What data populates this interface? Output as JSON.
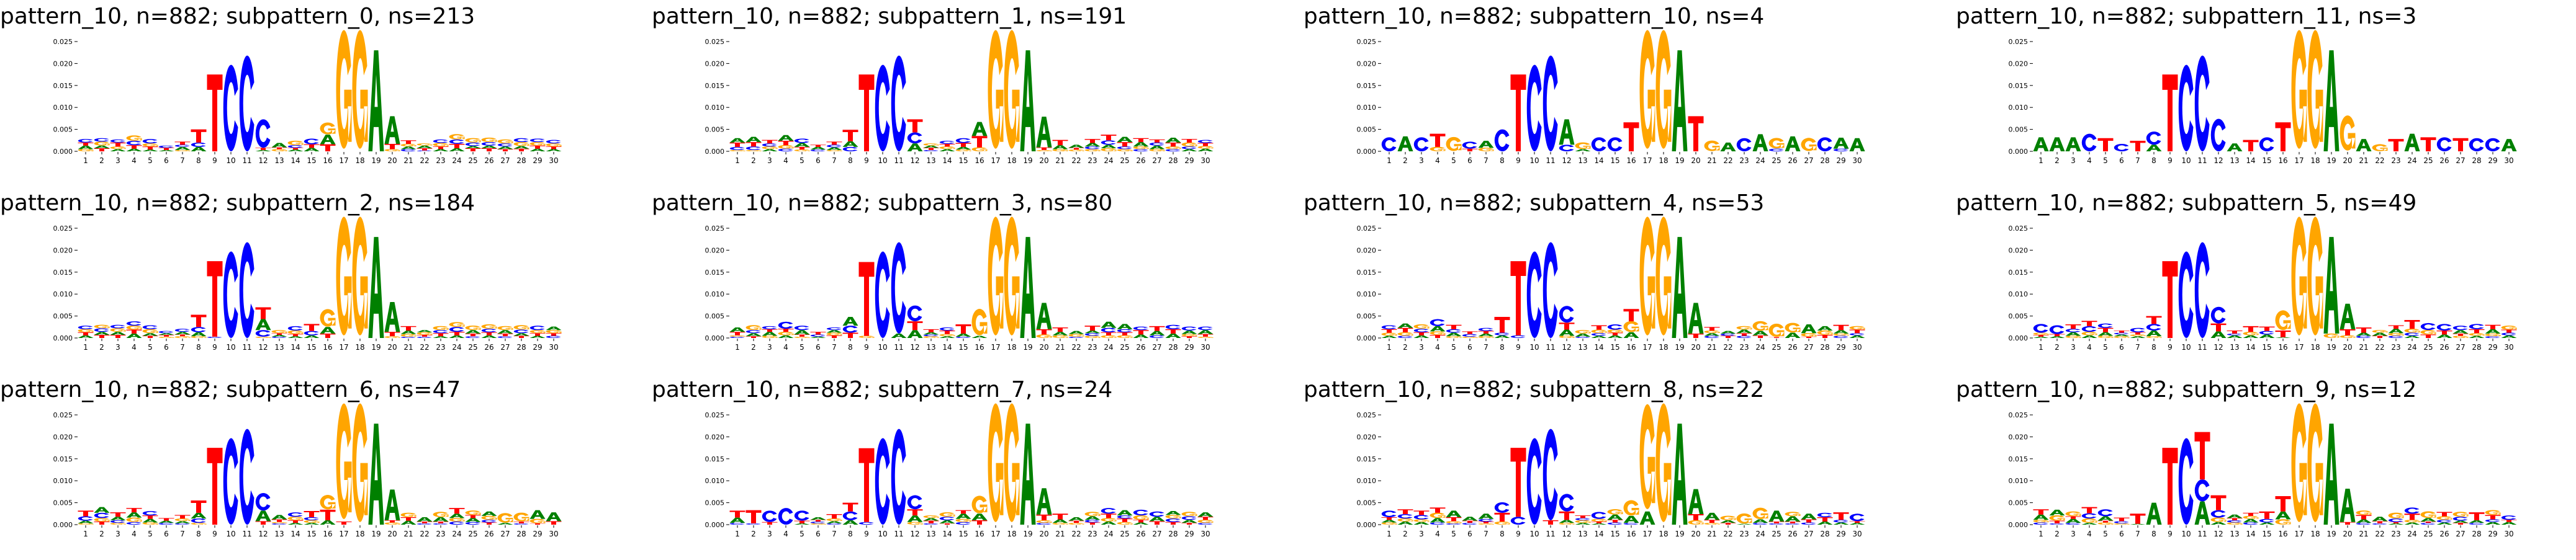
{
  "chart_data": {
    "type": "sequence-logo",
    "ylim": [
      0,
      0.027
    ],
    "yticks": [
      0,
      0.005,
      0.01,
      0.015,
      0.02,
      0.025
    ],
    "ytick_labels": [
      "0.000",
      "0.005",
      "0.010",
      "0.015",
      "0.020",
      "0.025"
    ],
    "xticks": [
      "1",
      "2",
      "3",
      "4",
      "5",
      "6",
      "7",
      "8",
      "9",
      "10",
      "11",
      "12",
      "13",
      "14",
      "15",
      "16",
      "17",
      "18",
      "19",
      "20",
      "21",
      "22",
      "23",
      "24",
      "25",
      "26",
      "27",
      "28",
      "29",
      "30"
    ],
    "value_unit": "0.001",
    "letter_colors": {
      "A": "#008000",
      "C": "#0000ff",
      "G": "#ffa500",
      "T": "#ff0000"
    },
    "core": {
      "9": "T17.5",
      "10": "C19.7",
      "11": "C21.8",
      "17": "G27",
      "18": "G27",
      "19": "A23"
    },
    "panels": [
      {
        "title": "pattern_10, n=882; subpattern_0, ns=213",
        "columns": [
          "G.5 A.8 T.7 C.8",
          "T.7 A.6 G.9 C.8",
          "A.5 G.6 T.9 C.7",
          "A.6 T.8 C1 G1.2",
          "A.4 T.7 G.7 C1",
          "A.3 T.5 C.5",
          "G.3 A.7 C.5 T.7",
          "A1 C1 T3",
          "*",
          "*",
          "*",
          "A.3 T.5 C6.5",
          "G.5 T.4 A1",
          "A.4 T.4 C.6 G1",
          "A.8 T.8 C1.3",
          "T1.6 A2.2 G2.7",
          "*",
          "*",
          "*",
          "G.5 T1.2 A6.3",
          "C.5 A.6 G.6 T.8",
          "C.2 T.5 A.6 G.5",
          "A.5 T.6 G.8 C.8",
          "A.7 T1 C1 G1.2",
          "T.7 A.5 C.8 G1",
          "T.7 A.6 C.8 G1",
          "T.5 A.6 C.7 G.9",
          "T.6 A.6 G.9 C.9",
          "A.6 T.7 G.8 C.8",
          "A.5 T.6 G.7 C.8"
        ]
      },
      {
        "title": "pattern_10, n=882; subpattern_1, ns=191",
        "columns": [
          "G.3 C.7 T1 A1",
          "G.3 C.8 T1 A1.2",
          "A.5 G.6 C.7 T.8",
          "C.6 G.8 T1 A1.3",
          "G.4 T.6 A.9 C1",
          "C.4 A.6 T.5",
          "G.3 A.6 C.6 T.7",
          "C1 A1.3 T2.6",
          "*",
          "*",
          "*",
          "A1.8 C2.5 T3",
          "C.3 T.5 A.5 G.5",
          "A.5 G.6 T.6 C.7",
          "G.4 A.6 T.9 C1.1",
          "G.9 T2.6 A3.2",
          "*",
          "*",
          "*",
          "G.3 T.6 A7",
          "G.5 A.9 T1.2",
          "G.4 T.4 A.7",
          "G.5 C.6 A.8 T.9",
          "G.7 A.8 C1 T1.3",
          "G.5 C.6 T1 A1.2",
          "C.5 G.6 A1 T.9",
          "G.5 A.8 C.7 T.7",
          "C.5 G.6 T.9 A1.1",
          "A.5 C.6 G.9 T.8",
          "A.6 G.6 T.7 C.7"
        ]
      },
      {
        "title": "pattern_10, n=882; subpattern_10, ns=4",
        "columns": [
          "C3.2",
          "A3.4",
          "C3.2",
          "G1 T3",
          "G3.2",
          "T.6 C1.6",
          "G.8 A1.6",
          "C5",
          "*",
          "*",
          "*",
          "C1.5 A5.8",
          "A.5 G1.5",
          "C3.2",
          "C3.2",
          "T6.6",
          "*",
          "*",
          "*",
          "T8",
          "G2.4",
          "A2",
          "C3",
          "A3.9",
          "C.6 G2.4",
          "A3.4",
          "G3",
          "C3.2",
          "C.6 A2.5",
          "A3"
        ]
      },
      {
        "title": "pattern_10, n=882; subpattern_11, ns=3",
        "columns": [
          "A3.2",
          "A3.2",
          "A3.2",
          "C4",
          "T3",
          "C1.7",
          "T2.4",
          "A1.5 C3",
          "*",
          "*",
          "*",
          "C7.4",
          "A1.8",
          "T2.6",
          "C3.2",
          "T6.6",
          "*",
          "*",
          "*",
          "G8",
          "A2.8",
          "G1.6",
          "T2.8",
          "A4",
          "T3.2",
          "C3.2",
          "T3",
          "C3",
          "C3",
          "A2.8"
        ]
      },
      {
        "title": "pattern_10, n=882; subpattern_2, ns=184",
        "columns": [
          "A.6 T.7 G.7 C.8",
          "T.7 A.7 C.8 G.8",
          "T.7 A.7 G.8 C.8",
          "A1 T.9 G.9 C1",
          "T.5 A.6 G.9 C.9",
          "G.3 T.4 A.4 C.5",
          "G.4 T.4 A.6 C.7",
          "G.4 A.9 C1.2 T2.8",
          "C.3 T17.2",
          "*",
          "*",
          "G.3 C1.5 A2.5 T2.7",
          "C.3 A.4 T.4 G.7",
          "A.4 T.5 G.8 C1",
          "A.6 C1 T1.6",
          "T1 A1.5 G4",
          "*",
          "*",
          "*",
          "G.4 T1 A6.8",
          "C.3 G.6 A.8 T1",
          "C.3 T.4 G.6 A.5",
          "A.4 T.7 C.7 G.9",
          "A.6 T.8 C1.1 G1.1",
          "C.4 T.6 A.8 G1",
          "A.6 T.7 C.8 G1",
          "C.4 T.6 A.8 G.9",
          "T.5 A.6 C.8 G1",
          "A.5 T.6 G.7 C1",
          "C.5 T.6 G.7 A.8"
        ]
      },
      {
        "title": "pattern_10, n=882; subpattern_3, ns=80",
        "columns": [
          "C.3 G.3 T.8 A1",
          "T.4 A.7 C.7 G1.1",
          "G.5 A.9 T.6 C.7",
          "A.6 G.8 T.7 C1.6",
          "G.3 T.5 A1 C1",
          "A.3 C.5 T.6",
          "T.6 G.6 A.6 C.6",
          "T1.2 C1.6 A2",
          "G.5 T16.8",
          "*",
          "A1 C20.8",
          "A1.8 T2 C3.6",
          "G.4 C.4 A.5 T.7",
          "A.4 G.5 T.8 C.7",
          "C.3 A.7 T2.1",
          "A.5 G6",
          "*",
          "*",
          "*",
          "G.8 T1.2 A6",
          "G.6 A.8 T1",
          "C.3 G.6 A.7",
          "G.5 C.6 A.6 T1.1",
          "G.6 T.7 C1 A1.4",
          "G.6 T.7 C.7 A1.2",
          "A.8 T1 C.8",
          "C.6 A1 T1.1",
          "A1 T1 C1",
          "T.4 G.5 A.8 C.9",
          "G.3 T.6 A.9 C.8"
        ]
      },
      {
        "title": "pattern_10, n=882; subpattern_4, ns=53",
        "columns": [
          "A.5 G.7 T.8 C.9",
          "C.5 G.8 T1 A1",
          "A.6 T.7 C.8 G1",
          "T.7 G.8 A1.2 C1.6",
          "G.4 A.8 C.8 T1",
          "G.3 C.6 T.6",
          "G.4 A.6 T.6 C.7",
          "A.6 C.6 T3.6",
          "C.6 T16.9",
          "*",
          "*",
          "G.5 A1.4 T1.6 C3.8",
          "C.3 A.7 G.8",
          "A.5 C.6 G.8 T1",
          "A.6 T.6 G.7 C1.2",
          "A1.3 G2.5 T2.8",
          "*",
          "*",
          "*",
          "T1 A7",
          "C.5 A.6 G.6 T.8",
          "T.5 C.5 A.6",
          "C.5 T.6 A.8 G.8",
          "T.6 A1 G2.2",
          "T.2 G3",
          "A1.2 G2.2",
          "T.3 G.8 A2",
          "T.7 G1 A1",
          "C.5 G.5 A.8 T1.2",
          "A.6 C.5 T.8 G.8"
        ]
      },
      {
        "title": "pattern_10, n=882; subpattern_5, ns=49",
        "columns": [
          "A.3 T.4 G.5 C2",
          "A.4 T.5 C2",
          "G.5 A.8 C.8 T1",
          "A.6 G.8 C1.3 T1.2",
          "G.5 A.8 T1 C1",
          "G.4 A.4 C.4 T.5",
          "A.4 G.4 T.5 C1",
          "G.4 A1.3 C1.5 T1.8",
          "*",
          "*",
          "*",
          "A1.5 T1.8 C3.8",
          "A.6 C.4 T.7",
          "A.6 G.8 T1.3",
          "A.8 C.8 T1",
          "A.2 T1.5 G4.5",
          "*",
          "*",
          "G1 A22",
          "G.6 T1.4 A5.8",
          "C.5 A.7 T1.2",
          "T.5 A.7 G.6",
          "C.5 G.6 A1 T.8",
          "A.5 C.7 G.9 T2",
          "T.8 G1 C1.6",
          "A.8 T.9 C1.5",
          "G.5 T.5 A.8 C1",
          "A.5 G.6 T.9 C1.2",
          "C.4 G.6 A1 T1",
          "A.6 C.6 T.7 G.9"
        ]
      },
      {
        "title": "pattern_10, n=882; subpattern_6, ns=47",
        "columns": [
          "G.3 A.6 C1 T1.3",
          "T.7 G.8 C1.2 A1.3",
          "G.4 C.6 A.8 T1",
          "C.6 G1 A1.2 T1",
          "G.5 A.8 T.8 C1",
          "C.4 A.5 T.6",
          "C.3 A.5 G.6 T.8",
          "G.4 C1 A1.3 T2.8",
          "*",
          "*",
          "*",
          "T.8 A2.4 C4",
          "C.3 G.3 T.6 A1",
          "A.4 T.6 G.8 C1",
          "A.4 G.6 C.7 T1.4",
          "A1 T2.4 G3.3",
          "T.7 G26.3",
          "*",
          "*",
          "G.5 T.5 A7",
          "A.9 T.8 G1",
          "C.3 T.4 A1",
          "C.3 T.4 A1 G1.2",
          "C.7 G.8 A1 T1.3",
          "C.6 A.9 T.7 G1",
          "T.5 C.6 G.9 A1",
          "A.4 G2.2",
          "C.3 T.4 G2",
          "T.3 G1 A2",
          "T.8 A2"
        ]
      },
      {
        "title": "pattern_10, n=882; subpattern_7, ns=24",
        "columns": [
          "C.4 A1.2 T1.6",
          "C.3 T3",
          "T.6 C2.6",
          "C3.8",
          "A.3 T.6 C2.3",
          "G.3 C.4 T.4 A.6",
          "C.3 A.5 G.6 T1",
          "A1 C2 T2",
          "C.6 T16.8",
          "*",
          "*",
          "G.6 A1.5 T1.4 C3.2",
          "C.3 T.6 A.6 G.6",
          "T.3 A.7 C.8 G1",
          "C.6 G.7 A1.2 T.8",
          "T1 A1.5 G4",
          "*",
          "*",
          "*",
          "C.4 G.6 T1.3 A6",
          "G.4 A.8 T1.3",
          "G.4 T.5 A.8",
          "T.5 C.6 A.8 G1",
          "A.7 G.8 T1 C1.3",
          "G.6 T.8 C.7 A1.2",
          "A.5 T.6 G1 C1.3",
          "T.8 A1 C1.2",
          "T.6 C.8 G.8 A.9",
          "T.4 A.7 C.8 G1",
          "C.4 G.7 T.7 A1"
        ]
      },
      {
        "title": "pattern_10, n=882; subpattern_8, ns=22",
        "columns": [
          "G.5 A.6 T.6 C1.5",
          "A.7 G.7 C1 T1.1",
          "A.6 G.6 C1 T1",
          "C.5 A1 G1.2 T1.2",
          "C.3 G.5 T.9 A1.5",
          "C.4 T.5 A.9",
          "G.3 T.4 C.6 A1.2",
          "G.7 T2 C2.4",
          "C1.8 T15.7",
          "*",
          "T1 C20.8",
          "G.4 A.7 T1.9 C4",
          "A.4 G.6 C.5 T.6",
          "A.3 T.4 G.6 C1.6",
          "C.5 T.6 A1.2 G1.2",
          "C.4 A1.6 G3.5",
          "A3 G23.9",
          "*",
          "*",
          "G1 T1.4 A5.7",
          "G.4 T.7 A1.6",
          "T.4 A.6 G1",
          "A.2 G2.3",
          "C.4 A.8 G2.6",
          "C.3 T.4 A2.5",
          "C.3 T.4 A1.2 G1",
          "C.5 T.7 A1.3",
          "A.7 T1 C1",
          "A.5 C.6 T1.7",
          "A.4 T.4 C1.7"
        ]
      },
      {
        "title": "pattern_10, n=882; subpattern_9, ns=12",
        "columns": [
          "C.5 G.6 A1.2 T1.2",
          "C.3 T.6 G1.2 A1.3",
          "C.4 A.9 T.6 G1.1",
          "A.4 G1 C1.2 T1.4",
          "G.5 T.4 A1 C1.6",
          "G.3 C.5 T.8",
          "A.2 T2.3",
          "A5",
          "*",
          "*",
          "A5.3 C5 T10.8",
          "A.6 G1 C1.7 T3.4",
          "G.5 C.5 T.5 A.8",
          "C.5 A.8 G.7 T.7",
          "A.5 C.8 T1.7",
          "G1.2 A1.8 T3.5",
          "*",
          "*",
          "*",
          "T.6 A7.6",
          "C.4 A.8 T1 G1",
          "C.3 T.5 A1",
          "A.3 T.3 C.8 G1.3",
          "A.5 G.6 T1.4 C1.4",
          "C.4 T.3 A.8 G1.5",
          "A.5 C.6 G.8 T1",
          "T.4 A.5 C.9 G1.1",
          "C.4 A.6 T1.8",
          "A.6 C.6 T1 G1.1",
          "A.6 T.5 C1"
        ]
      }
    ]
  }
}
